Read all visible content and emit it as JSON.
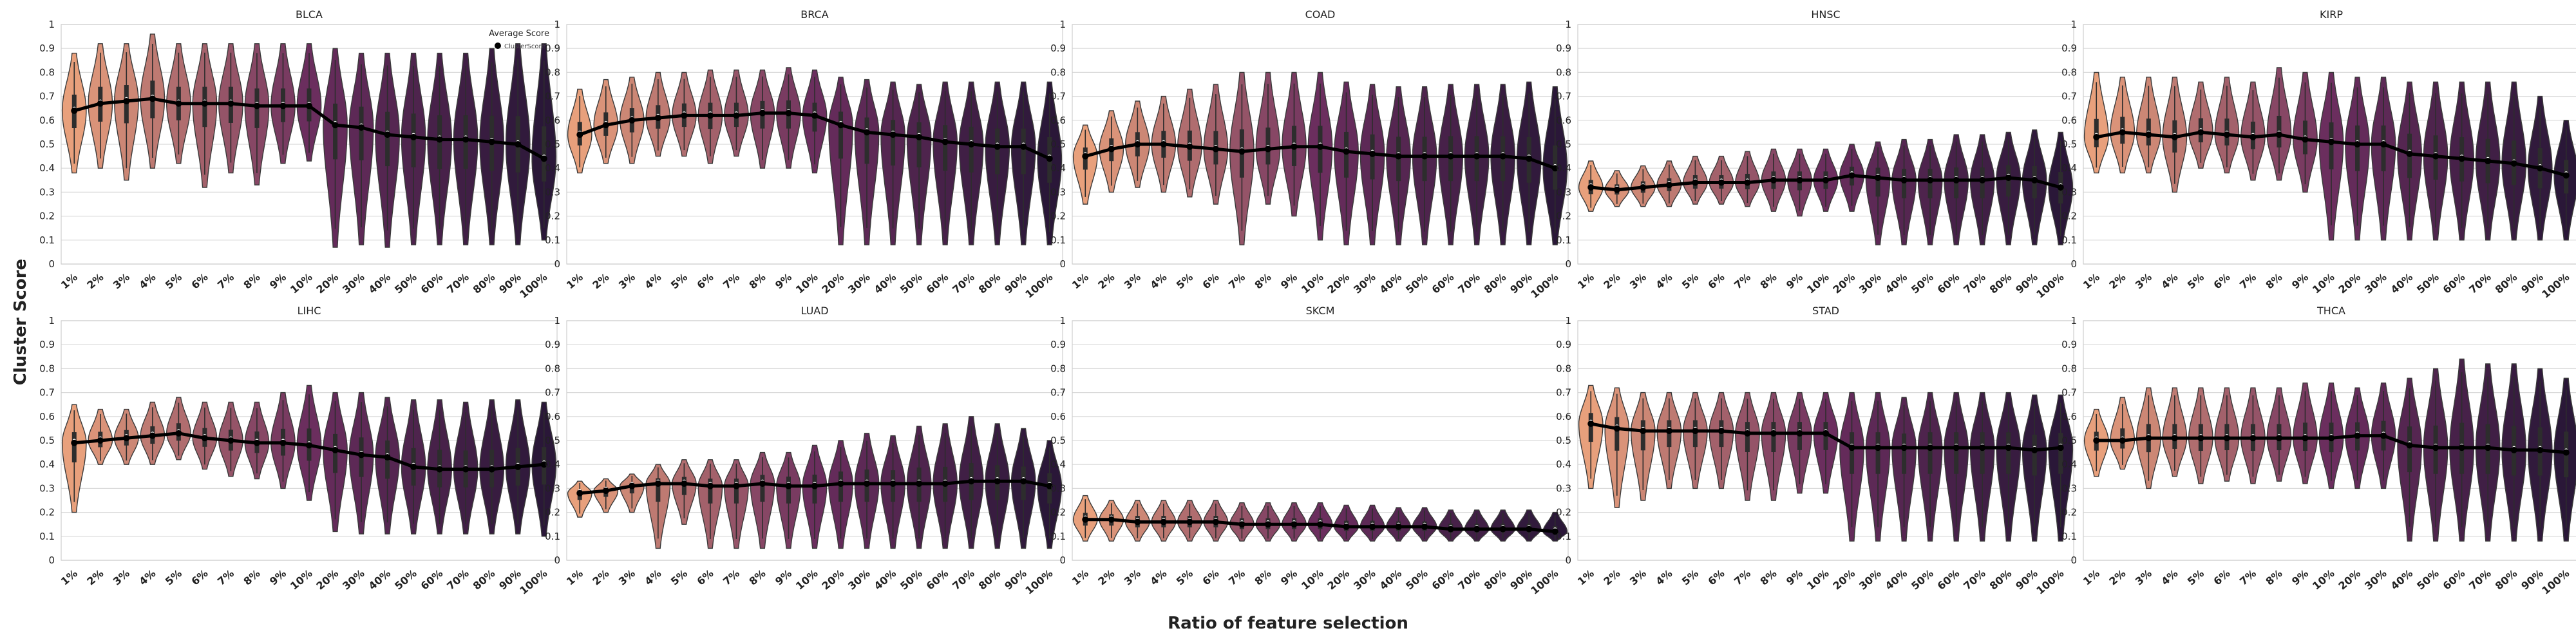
{
  "chart_data": {
    "type": "violin",
    "xlabel": "Ratio of feature selection",
    "ylabel": "Cluster Score",
    "categories": [
      "1%",
      "2%",
      "3%",
      "4%",
      "5%",
      "6%",
      "7%",
      "8%",
      "9%",
      "10%",
      "20%",
      "30%",
      "40%",
      "50%",
      "60%",
      "70%",
      "80%",
      "90%",
      "100%"
    ],
    "yticks": [
      "0",
      "0.1",
      "0.2",
      "0.3",
      "0.4",
      "0.5",
      "0.6",
      "0.7",
      "0.8",
      "0.9",
      "1"
    ],
    "ylim": [
      0,
      1
    ],
    "grid": true,
    "legend": {
      "title": "Average Score",
      "label": "ClusterScore",
      "placement": "top-right",
      "panel": "BLCA"
    },
    "palette": [
      "#e8a07c",
      "#6b2e5e",
      "#2a1738"
    ],
    "panels": [
      {
        "title": "BLCA",
        "mean": [
          0.64,
          0.67,
          0.68,
          0.69,
          0.67,
          0.67,
          0.67,
          0.66,
          0.66,
          0.66,
          0.58,
          0.57,
          0.54,
          0.53,
          0.52,
          0.52,
          0.51,
          0.5,
          0.44
        ],
        "min": [
          0.38,
          0.4,
          0.35,
          0.4,
          0.42,
          0.32,
          0.38,
          0.33,
          0.42,
          0.43,
          0.07,
          0.08,
          0.07,
          0.08,
          0.08,
          0.08,
          0.08,
          0.08,
          0.1
        ],
        "max": [
          0.88,
          0.92,
          0.92,
          0.96,
          0.92,
          0.92,
          0.92,
          0.92,
          0.92,
          0.92,
          0.9,
          0.88,
          0.88,
          0.88,
          0.88,
          0.88,
          0.9,
          0.92,
          0.92
        ]
      },
      {
        "title": "BRCA",
        "mean": [
          0.54,
          0.58,
          0.6,
          0.61,
          0.62,
          0.62,
          0.62,
          0.63,
          0.63,
          0.62,
          0.58,
          0.55,
          0.54,
          0.53,
          0.51,
          0.5,
          0.49,
          0.49,
          0.44
        ],
        "min": [
          0.38,
          0.42,
          0.42,
          0.45,
          0.45,
          0.42,
          0.45,
          0.4,
          0.4,
          0.38,
          0.08,
          0.08,
          0.08,
          0.08,
          0.08,
          0.08,
          0.08,
          0.08,
          0.08
        ],
        "max": [
          0.73,
          0.77,
          0.78,
          0.8,
          0.8,
          0.81,
          0.81,
          0.81,
          0.82,
          0.81,
          0.78,
          0.77,
          0.76,
          0.75,
          0.76,
          0.76,
          0.76,
          0.76,
          0.76
        ]
      },
      {
        "title": "COAD",
        "mean": [
          0.45,
          0.48,
          0.5,
          0.5,
          0.49,
          0.48,
          0.47,
          0.48,
          0.49,
          0.49,
          0.47,
          0.46,
          0.45,
          0.45,
          0.45,
          0.45,
          0.45,
          0.44,
          0.4
        ],
        "min": [
          0.25,
          0.3,
          0.32,
          0.3,
          0.28,
          0.25,
          0.08,
          0.25,
          0.2,
          0.1,
          0.08,
          0.08,
          0.08,
          0.08,
          0.08,
          0.08,
          0.08,
          0.08,
          0.08
        ],
        "max": [
          0.58,
          0.64,
          0.68,
          0.7,
          0.73,
          0.75,
          0.8,
          0.8,
          0.8,
          0.8,
          0.76,
          0.75,
          0.74,
          0.74,
          0.75,
          0.75,
          0.75,
          0.76,
          0.74
        ]
      },
      {
        "title": "HNSC",
        "mean": [
          0.32,
          0.31,
          0.32,
          0.33,
          0.34,
          0.34,
          0.34,
          0.35,
          0.35,
          0.35,
          0.37,
          0.36,
          0.35,
          0.35,
          0.35,
          0.35,
          0.36,
          0.35,
          0.32
        ],
        "min": [
          0.22,
          0.24,
          0.24,
          0.24,
          0.25,
          0.25,
          0.24,
          0.22,
          0.2,
          0.22,
          0.22,
          0.08,
          0.08,
          0.08,
          0.08,
          0.08,
          0.08,
          0.08,
          0.08
        ],
        "max": [
          0.43,
          0.39,
          0.41,
          0.43,
          0.45,
          0.45,
          0.47,
          0.48,
          0.48,
          0.48,
          0.5,
          0.51,
          0.52,
          0.52,
          0.54,
          0.54,
          0.55,
          0.56,
          0.55
        ]
      },
      {
        "title": "KIRP",
        "mean": [
          0.53,
          0.55,
          0.54,
          0.53,
          0.55,
          0.54,
          0.53,
          0.54,
          0.52,
          0.51,
          0.5,
          0.5,
          0.46,
          0.45,
          0.44,
          0.43,
          0.42,
          0.4,
          0.37
        ],
        "min": [
          0.38,
          0.38,
          0.38,
          0.3,
          0.4,
          0.38,
          0.35,
          0.35,
          0.3,
          0.1,
          0.1,
          0.1,
          0.1,
          0.1,
          0.1,
          0.1,
          0.1,
          0.1,
          0.1
        ],
        "max": [
          0.8,
          0.78,
          0.78,
          0.78,
          0.76,
          0.78,
          0.76,
          0.82,
          0.8,
          0.8,
          0.78,
          0.78,
          0.76,
          0.76,
          0.76,
          0.76,
          0.76,
          0.7,
          0.6
        ]
      },
      {
        "title": "LIHC",
        "mean": [
          0.49,
          0.5,
          0.51,
          0.52,
          0.53,
          0.51,
          0.5,
          0.49,
          0.49,
          0.48,
          0.46,
          0.44,
          0.43,
          0.39,
          0.38,
          0.38,
          0.38,
          0.39,
          0.4
        ],
        "min": [
          0.2,
          0.4,
          0.4,
          0.4,
          0.42,
          0.38,
          0.35,
          0.34,
          0.3,
          0.25,
          0.12,
          0.11,
          0.11,
          0.11,
          0.11,
          0.11,
          0.11,
          0.11,
          0.1
        ],
        "max": [
          0.65,
          0.63,
          0.63,
          0.66,
          0.68,
          0.66,
          0.66,
          0.66,
          0.7,
          0.73,
          0.7,
          0.7,
          0.68,
          0.67,
          0.67,
          0.66,
          0.67,
          0.67,
          0.66
        ]
      },
      {
        "title": "LUAD",
        "mean": [
          0.28,
          0.29,
          0.31,
          0.32,
          0.32,
          0.31,
          0.31,
          0.32,
          0.31,
          0.31,
          0.32,
          0.32,
          0.32,
          0.32,
          0.32,
          0.33,
          0.33,
          0.33,
          0.31
        ],
        "min": [
          0.18,
          0.2,
          0.2,
          0.05,
          0.15,
          0.05,
          0.05,
          0.05,
          0.05,
          0.05,
          0.05,
          0.05,
          0.05,
          0.05,
          0.05,
          0.05,
          0.05,
          0.05,
          0.05
        ],
        "max": [
          0.33,
          0.34,
          0.36,
          0.4,
          0.42,
          0.42,
          0.42,
          0.45,
          0.45,
          0.48,
          0.5,
          0.53,
          0.52,
          0.56,
          0.57,
          0.6,
          0.57,
          0.55,
          0.5
        ]
      },
      {
        "title": "SKCM",
        "mean": [
          0.17,
          0.17,
          0.16,
          0.16,
          0.16,
          0.16,
          0.15,
          0.15,
          0.15,
          0.15,
          0.14,
          0.14,
          0.14,
          0.14,
          0.13,
          0.13,
          0.13,
          0.13,
          0.12
        ],
        "min": [
          0.08,
          0.08,
          0.08,
          0.08,
          0.08,
          0.08,
          0.08,
          0.08,
          0.08,
          0.08,
          0.08,
          0.08,
          0.08,
          0.08,
          0.08,
          0.08,
          0.08,
          0.08,
          0.08
        ],
        "max": [
          0.27,
          0.25,
          0.25,
          0.25,
          0.25,
          0.25,
          0.24,
          0.24,
          0.24,
          0.24,
          0.23,
          0.23,
          0.22,
          0.22,
          0.21,
          0.21,
          0.21,
          0.21,
          0.2
        ]
      },
      {
        "title": "STAD",
        "mean": [
          0.57,
          0.55,
          0.54,
          0.54,
          0.54,
          0.54,
          0.53,
          0.53,
          0.53,
          0.53,
          0.47,
          0.47,
          0.47,
          0.47,
          0.47,
          0.47,
          0.47,
          0.46,
          0.47
        ],
        "min": [
          0.3,
          0.22,
          0.25,
          0.3,
          0.3,
          0.3,
          0.25,
          0.25,
          0.28,
          0.28,
          0.08,
          0.08,
          0.08,
          0.08,
          0.08,
          0.08,
          0.08,
          0.08,
          0.08
        ],
        "max": [
          0.73,
          0.72,
          0.7,
          0.7,
          0.7,
          0.7,
          0.7,
          0.7,
          0.7,
          0.7,
          0.7,
          0.7,
          0.68,
          0.7,
          0.7,
          0.7,
          0.7,
          0.69,
          0.69
        ]
      },
      {
        "title": "THCA",
        "mean": [
          0.5,
          0.5,
          0.51,
          0.51,
          0.51,
          0.51,
          0.51,
          0.51,
          0.51,
          0.51,
          0.52,
          0.52,
          0.48,
          0.47,
          0.47,
          0.47,
          0.46,
          0.46,
          0.45
        ],
        "min": [
          0.35,
          0.38,
          0.3,
          0.35,
          0.32,
          0.33,
          0.32,
          0.33,
          0.32,
          0.3,
          0.3,
          0.3,
          0.08,
          0.08,
          0.08,
          0.08,
          0.08,
          0.08,
          0.08
        ],
        "max": [
          0.63,
          0.68,
          0.72,
          0.72,
          0.72,
          0.72,
          0.72,
          0.72,
          0.74,
          0.74,
          0.72,
          0.74,
          0.76,
          0.8,
          0.84,
          0.82,
          0.82,
          0.8,
          0.76
        ]
      }
    ]
  }
}
